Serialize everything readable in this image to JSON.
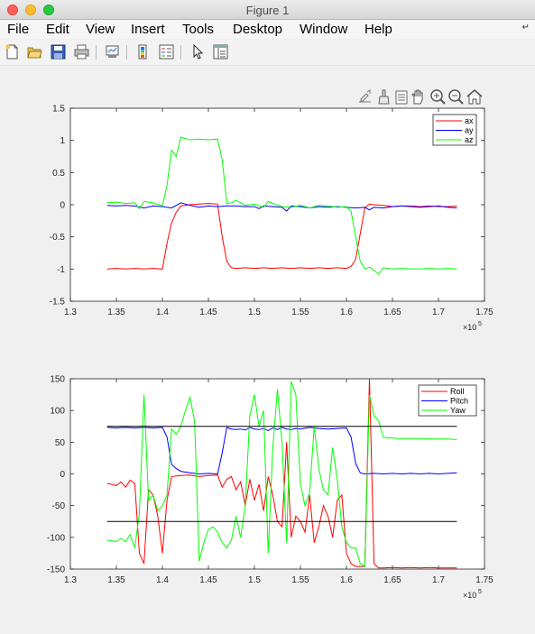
{
  "window": {
    "title": "Figure 1"
  },
  "menu": [
    "File",
    "Edit",
    "View",
    "Insert",
    "Tools",
    "Desktop",
    "Window",
    "Help"
  ],
  "toolbar_icons": [
    "new-figure-icon",
    "open-file-icon",
    "save-icon",
    "print-icon",
    "link-plot-icon",
    "insert-colorbar-icon",
    "insert-legend-icon",
    "edit-plot-icon",
    "property-inspector-icon"
  ],
  "axes_toolbar_icons": [
    "export-icon",
    "brush-icon",
    "data-tips-icon",
    "pan-icon",
    "zoom-in-icon",
    "zoom-out-icon",
    "home-icon"
  ],
  "chart_data": [
    {
      "type": "line",
      "xlim": [
        130000,
        175000
      ],
      "ylim": [
        -1.5,
        1.5
      ],
      "x_tick_labels": [
        "1.3",
        "1.35",
        "1.4",
        "1.45",
        "1.5",
        "1.55",
        "1.6",
        "1.65",
        "1.7",
        "1.75"
      ],
      "y_tick_labels": [
        "1.5",
        "1",
        "0.5",
        "0",
        "-0.5",
        "-1",
        "-1.5"
      ],
      "x_exponent_label": "×10",
      "x_exponent_power": "5",
      "grid": false,
      "legend_position": "top-right",
      "series": [
        {
          "name": "ax",
          "color": "#ff0000",
          "x": [
            134000,
            135000,
            136000,
            137000,
            138000,
            139000,
            140000,
            140500,
            141000,
            141500,
            142000,
            143000,
            144000,
            145000,
            146000,
            146500,
            147000,
            147500,
            148000,
            149000,
            150000,
            151000,
            152000,
            153000,
            154000,
            155000,
            156000,
            157000,
            158000,
            159000,
            160000,
            160500,
            161000,
            161500,
            162000,
            162500,
            163000,
            164000,
            165000,
            166000,
            167000,
            168000,
            169000,
            170000,
            171000,
            172000
          ],
          "y": [
            -1.0,
            -0.99,
            -1.0,
            -0.99,
            -1.0,
            -0.99,
            -1.0,
            -0.6,
            -0.28,
            -0.12,
            -0.02,
            0.0,
            0.01,
            0.02,
            0.01,
            -0.5,
            -0.88,
            -0.98,
            -0.99,
            -0.98,
            -0.99,
            -0.98,
            -0.99,
            -0.98,
            -0.99,
            -0.98,
            -0.99,
            -0.98,
            -0.99,
            -0.98,
            -0.99,
            -0.96,
            -0.85,
            -0.45,
            -0.05,
            0.01,
            0.0,
            -0.01,
            -0.03,
            -0.02,
            -0.02,
            -0.03,
            -0.02,
            -0.03,
            -0.03,
            -0.02
          ]
        },
        {
          "name": "ay",
          "color": "#0000ff",
          "x": [
            134000,
            135000,
            136000,
            137000,
            138000,
            139000,
            140000,
            141000,
            142000,
            143000,
            144000,
            145000,
            146000,
            147000,
            148000,
            149000,
            150000,
            150500,
            151000,
            152000,
            153000,
            153500,
            154000,
            155000,
            156000,
            157000,
            158000,
            159000,
            160000,
            161000,
            162000,
            162500,
            163000,
            164000,
            165000,
            166000,
            167000,
            168000,
            169000,
            170000,
            171000,
            172000
          ],
          "y": [
            -0.01,
            -0.02,
            -0.01,
            -0.02,
            -0.05,
            -0.02,
            -0.03,
            -0.05,
            0.03,
            -0.01,
            -0.04,
            -0.02,
            -0.03,
            -0.02,
            -0.02,
            -0.03,
            -0.03,
            -0.06,
            -0.02,
            -0.03,
            -0.04,
            -0.1,
            -0.02,
            -0.03,
            -0.05,
            -0.03,
            -0.04,
            -0.03,
            -0.04,
            -0.05,
            -0.04,
            -0.08,
            -0.04,
            -0.05,
            -0.03,
            -0.02,
            -0.03,
            -0.04,
            -0.03,
            -0.02,
            -0.04,
            -0.05
          ]
        },
        {
          "name": "az",
          "color": "#00ff00",
          "x": [
            134000,
            135000,
            136000,
            137000,
            137500,
            138000,
            139000,
            140000,
            140500,
            141000,
            141500,
            142000,
            143000,
            144000,
            145000,
            146000,
            146500,
            147000,
            147500,
            148000,
            149000,
            150000,
            151000,
            151500,
            152000,
            153000,
            154000,
            155000,
            156000,
            157000,
            158000,
            159000,
            160000,
            160500,
            161000,
            161500,
            162000,
            162500,
            163000,
            163500,
            164000,
            165000,
            166000,
            167000,
            168000,
            169000,
            170000,
            171000,
            172000
          ],
          "y": [
            0.03,
            0.04,
            0.02,
            0.03,
            -0.06,
            0.05,
            0.03,
            -0.02,
            0.3,
            0.85,
            0.75,
            1.05,
            1.01,
            1.02,
            1.01,
            1.02,
            0.7,
            0.02,
            0.03,
            0.07,
            -0.01,
            0.01,
            -0.04,
            0.05,
            0.02,
            -0.03,
            -0.04,
            -0.01,
            -0.05,
            -0.01,
            -0.02,
            -0.04,
            -0.03,
            -0.1,
            -0.5,
            -0.88,
            -1.0,
            -0.97,
            -1.02,
            -1.08,
            -0.98,
            -1.0,
            -0.99,
            -1.0,
            -1.0,
            -0.99,
            -1.0,
            -0.99,
            -1.0
          ]
        }
      ]
    },
    {
      "type": "line",
      "xlim": [
        130000,
        175000
      ],
      "ylim": [
        -180,
        180
      ],
      "x_tick_labels": [
        "1.3",
        "1.35",
        "1.4",
        "1.45",
        "1.5",
        "1.55",
        "1.6",
        "1.65",
        "1.7",
        "1.75"
      ],
      "y_tick_labels": [
        "150",
        "100",
        "50",
        "0",
        "-50",
        "-100",
        "-150"
      ],
      "x_exponent_label": "×10",
      "x_exponent_power": "5",
      "grid": false,
      "legend_position": "top-right",
      "series": [
        {
          "name": "Roll",
          "color": "#ff0000",
          "x": [
            134000,
            135000,
            135500,
            136000,
            136500,
            137000,
            137500,
            138000,
            138500,
            139000,
            139500,
            140000,
            140500,
            141000,
            142000,
            143000,
            144000,
            145000,
            146000,
            146500,
            147000,
            147500,
            148000,
            148500,
            149000,
            149500,
            150000,
            150500,
            151000,
            151500,
            152000,
            152500,
            153000,
            153500,
            154000,
            154500,
            155000,
            155500,
            156000,
            156500,
            157000,
            157500,
            158000,
            158500,
            159000,
            159500,
            160000,
            160500,
            161000,
            162000,
            162500,
            163000,
            163500,
            164000,
            165000,
            166000,
            167000,
            168000,
            169000,
            170000,
            171000,
            172000
          ],
          "y": [
            -18,
            -22,
            -15,
            -25,
            -12,
            -18,
            -150,
            -170,
            -30,
            -40,
            -80,
            -150,
            -50,
            -5,
            -3,
            -2,
            -5,
            -3,
            -2,
            -25,
            -10,
            -5,
            -30,
            -15,
            -60,
            -10,
            -50,
            -20,
            -70,
            -5,
            -40,
            -90,
            -100,
            60,
            -120,
            -80,
            -90,
            -110,
            -40,
            -130,
            -100,
            -60,
            -80,
            -120,
            -50,
            -40,
            -150,
            -170,
            -175,
            -175,
            180,
            -170,
            -178,
            -178,
            -177,
            -178,
            -177,
            -178,
            -177,
            -178,
            -178,
            -178
          ]
        },
        {
          "name": "Pitch",
          "color": "#0000ff",
          "x": [
            134000,
            135000,
            136000,
            137000,
            138000,
            139000,
            140000,
            140500,
            141000,
            141500,
            142000,
            143000,
            144000,
            145000,
            146000,
            146500,
            147000,
            147500,
            148000,
            148500,
            149000,
            149500,
            150000,
            150500,
            151000,
            151500,
            152000,
            152500,
            153000,
            153500,
            154000,
            154500,
            155000,
            156000,
            157000,
            158000,
            159000,
            160000,
            160500,
            161000,
            161500,
            162000,
            163000,
            164000,
            165000,
            166000,
            167000,
            168000,
            169000,
            170000,
            171000,
            172000
          ],
          "y": [
            88,
            87,
            88,
            87,
            88,
            87,
            88,
            70,
            18,
            10,
            5,
            2,
            0,
            1,
            0,
            40,
            88,
            85,
            84,
            85,
            83,
            88,
            85,
            84,
            86,
            82,
            87,
            84,
            88,
            85,
            84,
            86,
            85,
            88,
            86,
            85,
            86,
            87,
            70,
            20,
            2,
            0,
            1,
            0,
            1,
            0,
            1,
            0,
            1,
            0,
            1,
            2
          ]
        },
        {
          "name": "Yaw",
          "color": "#00ff00",
          "x": [
            134000,
            135000,
            135500,
            136000,
            136500,
            137000,
            137500,
            138000,
            138500,
            139000,
            139500,
            140000,
            140500,
            141000,
            141500,
            142000,
            142500,
            143000,
            143500,
            144000,
            144500,
            145000,
            145500,
            146000,
            146500,
            147000,
            147500,
            148000,
            148500,
            149000,
            149500,
            150000,
            150500,
            151000,
            151500,
            152000,
            152500,
            153000,
            153500,
            154000,
            154500,
            155000,
            155500,
            156000,
            156500,
            157000,
            157500,
            158000,
            158500,
            159000,
            159500,
            160000,
            160500,
            161000,
            161500,
            162000,
            162500,
            163000,
            163500,
            164000,
            164500,
            165000,
            165500,
            166000,
            167000,
            168000,
            169000,
            170000,
            171000,
            172000
          ],
          "y": [
            -125,
            -128,
            -122,
            -128,
            -115,
            -140,
            -75,
            150,
            -50,
            -40,
            -70,
            -60,
            -40,
            85,
            75,
            90,
            120,
            145,
            100,
            -165,
            -130,
            -105,
            -100,
            -110,
            -130,
            -140,
            -125,
            -80,
            -120,
            -60,
            110,
            150,
            90,
            120,
            -150,
            50,
            160,
            60,
            -130,
            175,
            150,
            -20,
            -60,
            -35,
            90,
            10,
            -30,
            -40,
            50,
            -10,
            -100,
            -130,
            -140,
            -140,
            -170,
            -175,
            150,
            110,
            100,
            70,
            68,
            68,
            67,
            67,
            67,
            67,
            66,
            66,
            66,
            65
          ]
        },
        {
          "name": "",
          "color": "#000000",
          "x": [
            134000,
            172000
          ],
          "y": [
            90,
            90
          ]
        },
        {
          "name": "",
          "color": "#000000",
          "x": [
            134000,
            172000
          ],
          "y": [
            -90,
            -90
          ]
        }
      ]
    }
  ]
}
